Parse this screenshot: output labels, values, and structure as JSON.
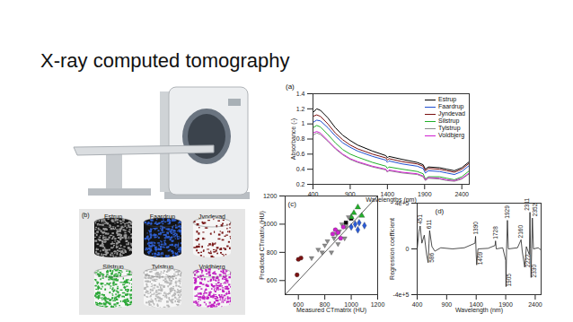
{
  "title": "X-ray computed tomography",
  "images": {
    "label": "(b)",
    "samples": [
      {
        "name": "Estrup",
        "color": "#9a9a9a"
      },
      {
        "name": "Faardrup",
        "color": "#2f5fd0"
      },
      {
        "name": "Jyndevad",
        "color": "#7a1a1a"
      },
      {
        "name": "Silstrup",
        "color": "#2ea83a"
      },
      {
        "name": "Tylstrup",
        "color": "#b8b8b8"
      },
      {
        "name": "Voldbjerg",
        "color": "#c020c0"
      }
    ]
  },
  "chart_data": [
    {
      "type": "line",
      "label": "(a)",
      "x_label": "Wavelengths (nm)",
      "y_label": "Absorbance (-)",
      "x": [
        400,
        450,
        500,
        600,
        700,
        800,
        900,
        1000,
        1200,
        1380,
        1400,
        1420,
        1600,
        1800,
        1880,
        1910,
        1950,
        2100,
        2200,
        2300,
        2400,
        2500
      ],
      "series": [
        {
          "name": "Estrup",
          "color": "#000000",
          "values": [
            1.15,
            1.2,
            1.18,
            1.08,
            0.95,
            0.85,
            0.78,
            0.72,
            0.64,
            0.58,
            0.55,
            0.57,
            0.53,
            0.49,
            0.46,
            0.4,
            0.43,
            0.42,
            0.4,
            0.38,
            0.42,
            0.5
          ]
        },
        {
          "name": "Faardrup",
          "color": "#1f4fd0",
          "values": [
            1.02,
            1.05,
            1.04,
            0.95,
            0.84,
            0.75,
            0.69,
            0.64,
            0.57,
            0.52,
            0.49,
            0.51,
            0.47,
            0.44,
            0.41,
            0.35,
            0.38,
            0.37,
            0.35,
            0.33,
            0.37,
            0.45
          ]
        },
        {
          "name": "Jyndevad",
          "color": "#7b1111",
          "values": [
            1.1,
            1.12,
            1.1,
            1.0,
            0.88,
            0.79,
            0.72,
            0.67,
            0.6,
            0.55,
            0.52,
            0.54,
            0.5,
            0.47,
            0.44,
            0.38,
            0.41,
            0.4,
            0.38,
            0.36,
            0.4,
            0.48
          ]
        },
        {
          "name": "Silstrup",
          "color": "#22b02a",
          "values": [
            0.95,
            0.98,
            0.96,
            0.86,
            0.75,
            0.66,
            0.6,
            0.56,
            0.49,
            0.44,
            0.41,
            0.43,
            0.4,
            0.37,
            0.34,
            0.27,
            0.3,
            0.3,
            0.28,
            0.26,
            0.3,
            0.38
          ]
        },
        {
          "name": "Tylstrup",
          "color": "#8c8c8c",
          "values": [
            0.85,
            0.88,
            0.86,
            0.77,
            0.67,
            0.59,
            0.53,
            0.49,
            0.43,
            0.39,
            0.36,
            0.38,
            0.35,
            0.33,
            0.3,
            0.25,
            0.28,
            0.27,
            0.25,
            0.24,
            0.27,
            0.34
          ]
        },
        {
          "name": "Voldbjerg",
          "color": "#d020d0",
          "values": [
            0.88,
            0.9,
            0.88,
            0.78,
            0.68,
            0.6,
            0.54,
            0.5,
            0.44,
            0.4,
            0.37,
            0.39,
            0.36,
            0.34,
            0.31,
            0.26,
            0.29,
            0.28,
            0.26,
            0.25,
            0.28,
            0.35
          ]
        }
      ],
      "xlim": [
        400,
        2500
      ],
      "xticks": [
        400,
        900,
        1400,
        1900,
        2400
      ],
      "ylim": [
        0.2,
        1.4
      ],
      "yticks": [
        0.2,
        0.4,
        0.6,
        0.8,
        1,
        1.2,
        1.4
      ],
      "legend": "top-right"
    },
    {
      "type": "scatter",
      "label": "(c)",
      "x_label": "Measured CTmatrix (HU)",
      "y_label": "Predicted CTmatrix (HU)",
      "series": [
        {
          "color": "#000000",
          "marker": "square",
          "x": [
            960,
            1000
          ],
          "values": [
            1010,
            1040
          ]
        },
        {
          "color": "#2a5bd7",
          "marker": "diamond",
          "x": [
            1000,
            1030,
            1050,
            1060,
            1100
          ],
          "values": [
            980,
            1000,
            960,
            1010,
            990
          ]
        },
        {
          "color": "#7b1111",
          "marker": "circle",
          "x": [
            590,
            600,
            620
          ],
          "values": [
            640,
            750,
            760
          ]
        },
        {
          "color": "#22b02a",
          "marker": "triangle-up",
          "x": [
            1000,
            1020,
            1050,
            1080
          ],
          "values": [
            1050,
            1080,
            1120,
            1060
          ]
        },
        {
          "color": "#8c8c8c",
          "marker": "triangle-down",
          "x": [
            700,
            750,
            780,
            800,
            820,
            850,
            870,
            890,
            900,
            910,
            930,
            950,
            960,
            980
          ],
          "values": [
            760,
            820,
            800,
            850,
            880,
            800,
            900,
            930,
            860,
            950,
            1000,
            900,
            980,
            1050
          ]
        },
        {
          "color": "#d020d0",
          "marker": "circle",
          "x": [
            860,
            880,
            900,
            920,
            940
          ],
          "values": [
            930,
            960,
            940,
            900,
            980
          ]
        }
      ],
      "xlim": [
        500,
        1200
      ],
      "xticks": [
        600,
        800,
        1000,
        1200
      ],
      "ylim": [
        500,
        1200
      ],
      "yticks": [
        600,
        800,
        1000,
        1200
      ]
    },
    {
      "type": "line",
      "label": "(d)",
      "x_label": "Wavelength (nm)",
      "y_label": "Regression coefficient",
      "color": "#222222",
      "x": [
        400,
        430,
        451,
        480,
        520,
        560,
        586,
        600,
        611,
        650,
        700,
        800,
        1000,
        1200,
        1380,
        1390,
        1400,
        1409,
        1430,
        1600,
        1720,
        1728,
        1740,
        1850,
        1900,
        1905,
        1915,
        1929,
        1945,
        2100,
        2160,
        2180,
        2222,
        2250,
        2300,
        2311,
        2320,
        2330,
        2340,
        2352,
        2370,
        2450,
        2500
      ],
      "values": [
        0,
        150000,
        200000,
        50000,
        120000,
        -50000,
        -120000,
        50000,
        160000,
        20000,
        -20000,
        10000,
        0,
        10000,
        50000,
        110000,
        -50000,
        -140000,
        0,
        5000,
        30000,
        70000,
        0,
        10000,
        -100000,
        -330000,
        0,
        250000,
        0,
        10000,
        80000,
        -20000,
        -160000,
        20000,
        -50000,
        320000,
        0,
        -250000,
        0,
        270000,
        0,
        10000,
        -10000
      ],
      "annotations": [
        {
          "x": 451,
          "y": 215000,
          "text": "451"
        },
        {
          "x": 611,
          "y": 175000,
          "text": "611"
        },
        {
          "x": 586,
          "y": -120000,
          "text": "586"
        },
        {
          "x": 1390,
          "y": 125000,
          "text": "1390"
        },
        {
          "x": 1409,
          "y": -140000,
          "text": "1409"
        },
        {
          "x": 1728,
          "y": 85000,
          "text": "1728"
        },
        {
          "x": 1905,
          "y": -330000,
          "text": "1905"
        },
        {
          "x": 1929,
          "y": 265000,
          "text": "1929"
        },
        {
          "x": 2160,
          "y": 95000,
          "text": "2160"
        },
        {
          "x": 2222,
          "y": -160000,
          "text": "2222"
        },
        {
          "x": 2311,
          "y": 335000,
          "text": "2311"
        },
        {
          "x": 2330,
          "y": -250000,
          "text": "2330"
        },
        {
          "x": 2352,
          "y": 285000,
          "text": "2352"
        }
      ],
      "xlim": [
        400,
        2500
      ],
      "xticks": [
        400,
        900,
        1400,
        1900,
        2400
      ],
      "ylim": [
        -400000,
        400000
      ],
      "yticks": [
        {
          "value": -400000,
          "label": "-4e+5"
        },
        0,
        {
          "value": 400000,
          "label": "4e+5"
        }
      ]
    }
  ]
}
